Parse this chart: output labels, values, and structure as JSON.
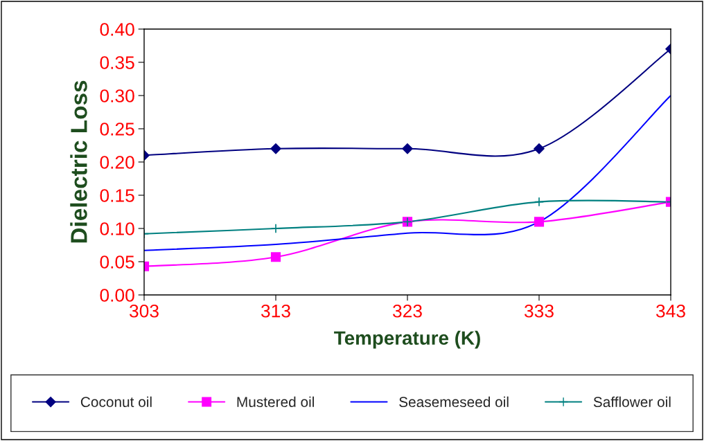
{
  "chart_data": {
    "type": "line",
    "xlabel": "Temperature (K)",
    "ylabel": "Dielectric Loss",
    "x": [
      303,
      313,
      323,
      333,
      343
    ],
    "series": [
      {
        "name": "Coconut oil",
        "color": "#000080",
        "marker": "diamond",
        "values": [
          0.21,
          0.22,
          0.22,
          0.22,
          0.37
        ]
      },
      {
        "name": "Mustered oil",
        "color": "#ff00ff",
        "marker": "square",
        "values": [
          0.043,
          0.057,
          0.11,
          0.11,
          0.14
        ]
      },
      {
        "name": "Seasemeseed oil",
        "color": "#0000ff",
        "marker": "none",
        "values": [
          0.067,
          0.076,
          0.093,
          0.11,
          0.3
        ]
      },
      {
        "name": "Safflower oil",
        "color": "#008080",
        "marker": "cross",
        "values": [
          0.092,
          0.1,
          0.11,
          0.14,
          0.14
        ]
      }
    ],
    "xlim": [
      303,
      343
    ],
    "xticks": [
      303,
      313,
      323,
      333,
      343
    ],
    "ylim": [
      0,
      0.4
    ],
    "yticks": [
      {
        "value": 0,
        "label": "0.00"
      },
      {
        "value": 0.05,
        "label": "0.05"
      },
      {
        "value": 0.1,
        "label": "0.10"
      },
      {
        "value": 0.15,
        "label": "0.15"
      },
      {
        "value": 0.2,
        "label": "0.20"
      },
      {
        "value": 0.25,
        "label": "0.25"
      },
      {
        "value": 0.3,
        "label": "0.30"
      },
      {
        "value": 0.35,
        "label": "0.35"
      },
      {
        "value": 0.4,
        "label": "0.40"
      }
    ],
    "grid": false,
    "legend": "bottom"
  }
}
